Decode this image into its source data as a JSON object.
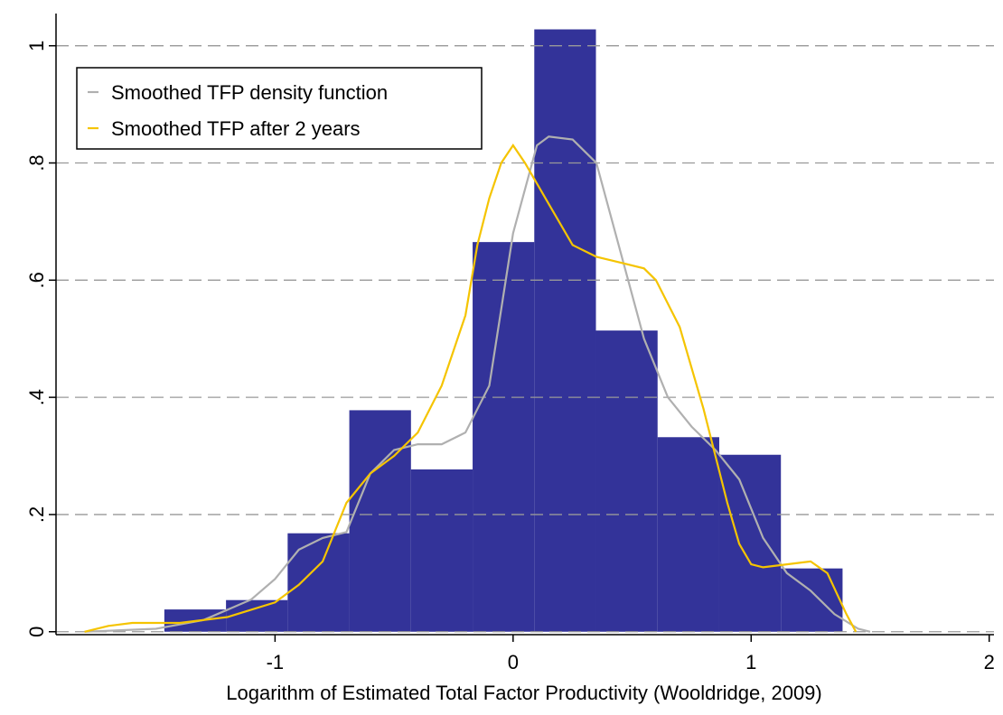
{
  "chart_data": {
    "type": "histogram",
    "xlabel": "Logarithm of Estimated Total Factor Productivity (Wooldridge, 2009)",
    "bins": [
      -1.465,
      -1.206,
      -0.947,
      -0.688,
      -0.429,
      -0.17,
      0.089,
      0.348,
      0.607,
      0.866,
      1.125,
      1.384
    ],
    "counts": [
      0.038,
      0.054,
      0.168,
      0.378,
      0.277,
      0.665,
      1.028,
      0.514,
      0.332,
      0.302,
      0.108
    ],
    "color": "#333399",
    "series": [
      {
        "name": "Smoothed TFP density function",
        "color": "#b0b0b0",
        "x": [
          -1.8,
          -1.5,
          -1.3,
          -1.1,
          -1.0,
          -0.9,
          -0.8,
          -0.7,
          -0.6,
          -0.5,
          -0.4,
          -0.3,
          -0.2,
          -0.1,
          0,
          0.1,
          0.15,
          0.25,
          0.35,
          0.45,
          0.55,
          0.65,
          0.75,
          0.85,
          0.95,
          1.05,
          1.15,
          1.25,
          1.35,
          1.45,
          1.5
        ],
        "values": [
          0,
          0.005,
          0.02,
          0.055,
          0.09,
          0.14,
          0.16,
          0.17,
          0.27,
          0.31,
          0.32,
          0.32,
          0.34,
          0.42,
          0.68,
          0.83,
          0.845,
          0.84,
          0.8,
          0.65,
          0.5,
          0.4,
          0.35,
          0.31,
          0.26,
          0.16,
          0.1,
          0.07,
          0.03,
          0.005,
          0
        ]
      },
      {
        "name": "Smoothed TFP after 2 years",
        "color": "#f5c400",
        "x": [
          -1.8,
          -1.7,
          -1.6,
          -1.4,
          -1.2,
          -1.0,
          -0.9,
          -0.8,
          -0.7,
          -0.6,
          -0.5,
          -0.4,
          -0.3,
          -0.2,
          -0.15,
          -0.1,
          -0.05,
          0,
          0.05,
          0.15,
          0.25,
          0.35,
          0.45,
          0.55,
          0.6,
          0.7,
          0.8,
          0.9,
          0.95,
          1.0,
          1.05,
          1.15,
          1.25,
          1.32,
          1.4,
          1.44
        ],
        "values": [
          0,
          0.01,
          0.015,
          0.015,
          0.025,
          0.05,
          0.08,
          0.12,
          0.22,
          0.27,
          0.3,
          0.34,
          0.42,
          0.54,
          0.66,
          0.74,
          0.8,
          0.83,
          0.8,
          0.73,
          0.66,
          0.64,
          0.63,
          0.62,
          0.6,
          0.52,
          0.38,
          0.22,
          0.15,
          0.115,
          0.11,
          0.115,
          0.12,
          0.1,
          0.03,
          0
        ]
      }
    ],
    "xlim": [
      -1.92,
      2.02
    ],
    "xticks": [
      -1,
      0,
      1,
      2
    ],
    "ylim": [
      -0.005,
      1.055
    ],
    "yticks": [
      0,
      {
        "value": 0.2,
        "label": ".2"
      },
      {
        "value": 0.4,
        "label": ".4"
      },
      {
        "value": 0.6,
        "label": ".6"
      },
      {
        "value": 0.8,
        "label": ".8"
      },
      1
    ],
    "grid": true,
    "legend": "upper left"
  }
}
